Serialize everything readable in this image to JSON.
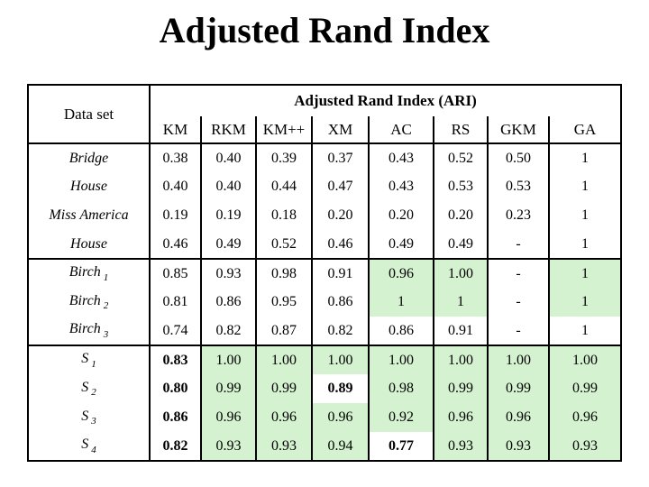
{
  "title": "Adjusted Rand Index",
  "table": {
    "corner_header": "Data set",
    "span_header": "Adjusted Rand Index (ARI)",
    "columns": [
      "KM",
      "RKM",
      "KM++",
      "XM",
      "AC",
      "RS",
      "GKM",
      "GA"
    ],
    "highlight_color": "#d4f2cf",
    "groups": [
      {
        "rows": [
          {
            "name": "Bridge",
            "sub": "",
            "cells": [
              {
                "v": "0.38"
              },
              {
                "v": "0.40"
              },
              {
                "v": "0.39"
              },
              {
                "v": "0.37"
              },
              {
                "v": "0.43"
              },
              {
                "v": "0.52"
              },
              {
                "v": "0.50"
              },
              {
                "v": "1"
              }
            ]
          },
          {
            "name": "House",
            "sub": "",
            "cells": [
              {
                "v": "0.40"
              },
              {
                "v": "0.40"
              },
              {
                "v": "0.44"
              },
              {
                "v": "0.47"
              },
              {
                "v": "0.43"
              },
              {
                "v": "0.53"
              },
              {
                "v": "0.53"
              },
              {
                "v": "1"
              }
            ]
          },
          {
            "name": "Miss America",
            "sub": "",
            "cells": [
              {
                "v": "0.19"
              },
              {
                "v": "0.19"
              },
              {
                "v": "0.18"
              },
              {
                "v": "0.20"
              },
              {
                "v": "0.20"
              },
              {
                "v": "0.20"
              },
              {
                "v": "0.23"
              },
              {
                "v": "1"
              }
            ]
          },
          {
            "name": "House",
            "sub": "",
            "cells": [
              {
                "v": "0.46"
              },
              {
                "v": "0.49"
              },
              {
                "v": "0.52"
              },
              {
                "v": "0.46"
              },
              {
                "v": "0.49"
              },
              {
                "v": "0.49"
              },
              {
                "v": "-"
              },
              {
                "v": "1"
              }
            ]
          }
        ]
      },
      {
        "rows": [
          {
            "name": "Birch",
            "sub": "1",
            "cells": [
              {
                "v": "0.85"
              },
              {
                "v": "0.93"
              },
              {
                "v": "0.98"
              },
              {
                "v": "0.91"
              },
              {
                "v": "0.96",
                "g": true
              },
              {
                "v": "1.00",
                "g": true
              },
              {
                "v": "-"
              },
              {
                "v": "1",
                "g": true
              }
            ]
          },
          {
            "name": "Birch",
            "sub": "2",
            "cells": [
              {
                "v": "0.81"
              },
              {
                "v": "0.86"
              },
              {
                "v": "0.95"
              },
              {
                "v": "0.86"
              },
              {
                "v": "1",
                "g": true
              },
              {
                "v": "1",
                "g": true
              },
              {
                "v": "-"
              },
              {
                "v": "1",
                "g": true
              }
            ]
          },
          {
            "name": "Birch",
            "sub": "3",
            "cells": [
              {
                "v": "0.74"
              },
              {
                "v": "0.82"
              },
              {
                "v": "0.87"
              },
              {
                "v": "0.82"
              },
              {
                "v": "0.86"
              },
              {
                "v": "0.91"
              },
              {
                "v": "-"
              },
              {
                "v": "1"
              }
            ]
          }
        ]
      },
      {
        "rows": [
          {
            "name": "S",
            "sub": "1",
            "cells": [
              {
                "v": "0.83",
                "b": true
              },
              {
                "v": "1.00",
                "g": true
              },
              {
                "v": "1.00",
                "g": true
              },
              {
                "v": "1.00",
                "g": true
              },
              {
                "v": "1.00",
                "g": true
              },
              {
                "v": "1.00",
                "g": true
              },
              {
                "v": "1.00",
                "g": true
              },
              {
                "v": "1.00",
                "g": true
              }
            ]
          },
          {
            "name": "S",
            "sub": "2",
            "cells": [
              {
                "v": "0.80",
                "b": true
              },
              {
                "v": "0.99",
                "g": true
              },
              {
                "v": "0.99",
                "g": true
              },
              {
                "v": "0.89",
                "b": true
              },
              {
                "v": "0.98",
                "g": true
              },
              {
                "v": "0.99",
                "g": true
              },
              {
                "v": "0.99",
                "g": true
              },
              {
                "v": "0.99",
                "g": true
              }
            ]
          },
          {
            "name": "S",
            "sub": "3",
            "cells": [
              {
                "v": "0.86",
                "b": true
              },
              {
                "v": "0.96",
                "g": true
              },
              {
                "v": "0.96",
                "g": true
              },
              {
                "v": "0.96",
                "g": true
              },
              {
                "v": "0.92",
                "g": true
              },
              {
                "v": "0.96",
                "g": true
              },
              {
                "v": "0.96",
                "g": true
              },
              {
                "v": "0.96",
                "g": true
              }
            ]
          },
          {
            "name": "S",
            "sub": "4",
            "cells": [
              {
                "v": "0.82",
                "b": true
              },
              {
                "v": "0.93",
                "g": true
              },
              {
                "v": "0.93",
                "g": true
              },
              {
                "v": "0.94",
                "g": true
              },
              {
                "v": "0.77",
                "b": true
              },
              {
                "v": "0.93",
                "g": true
              },
              {
                "v": "0.93",
                "g": true
              },
              {
                "v": "0.93",
                "g": true
              }
            ]
          }
        ]
      }
    ]
  }
}
